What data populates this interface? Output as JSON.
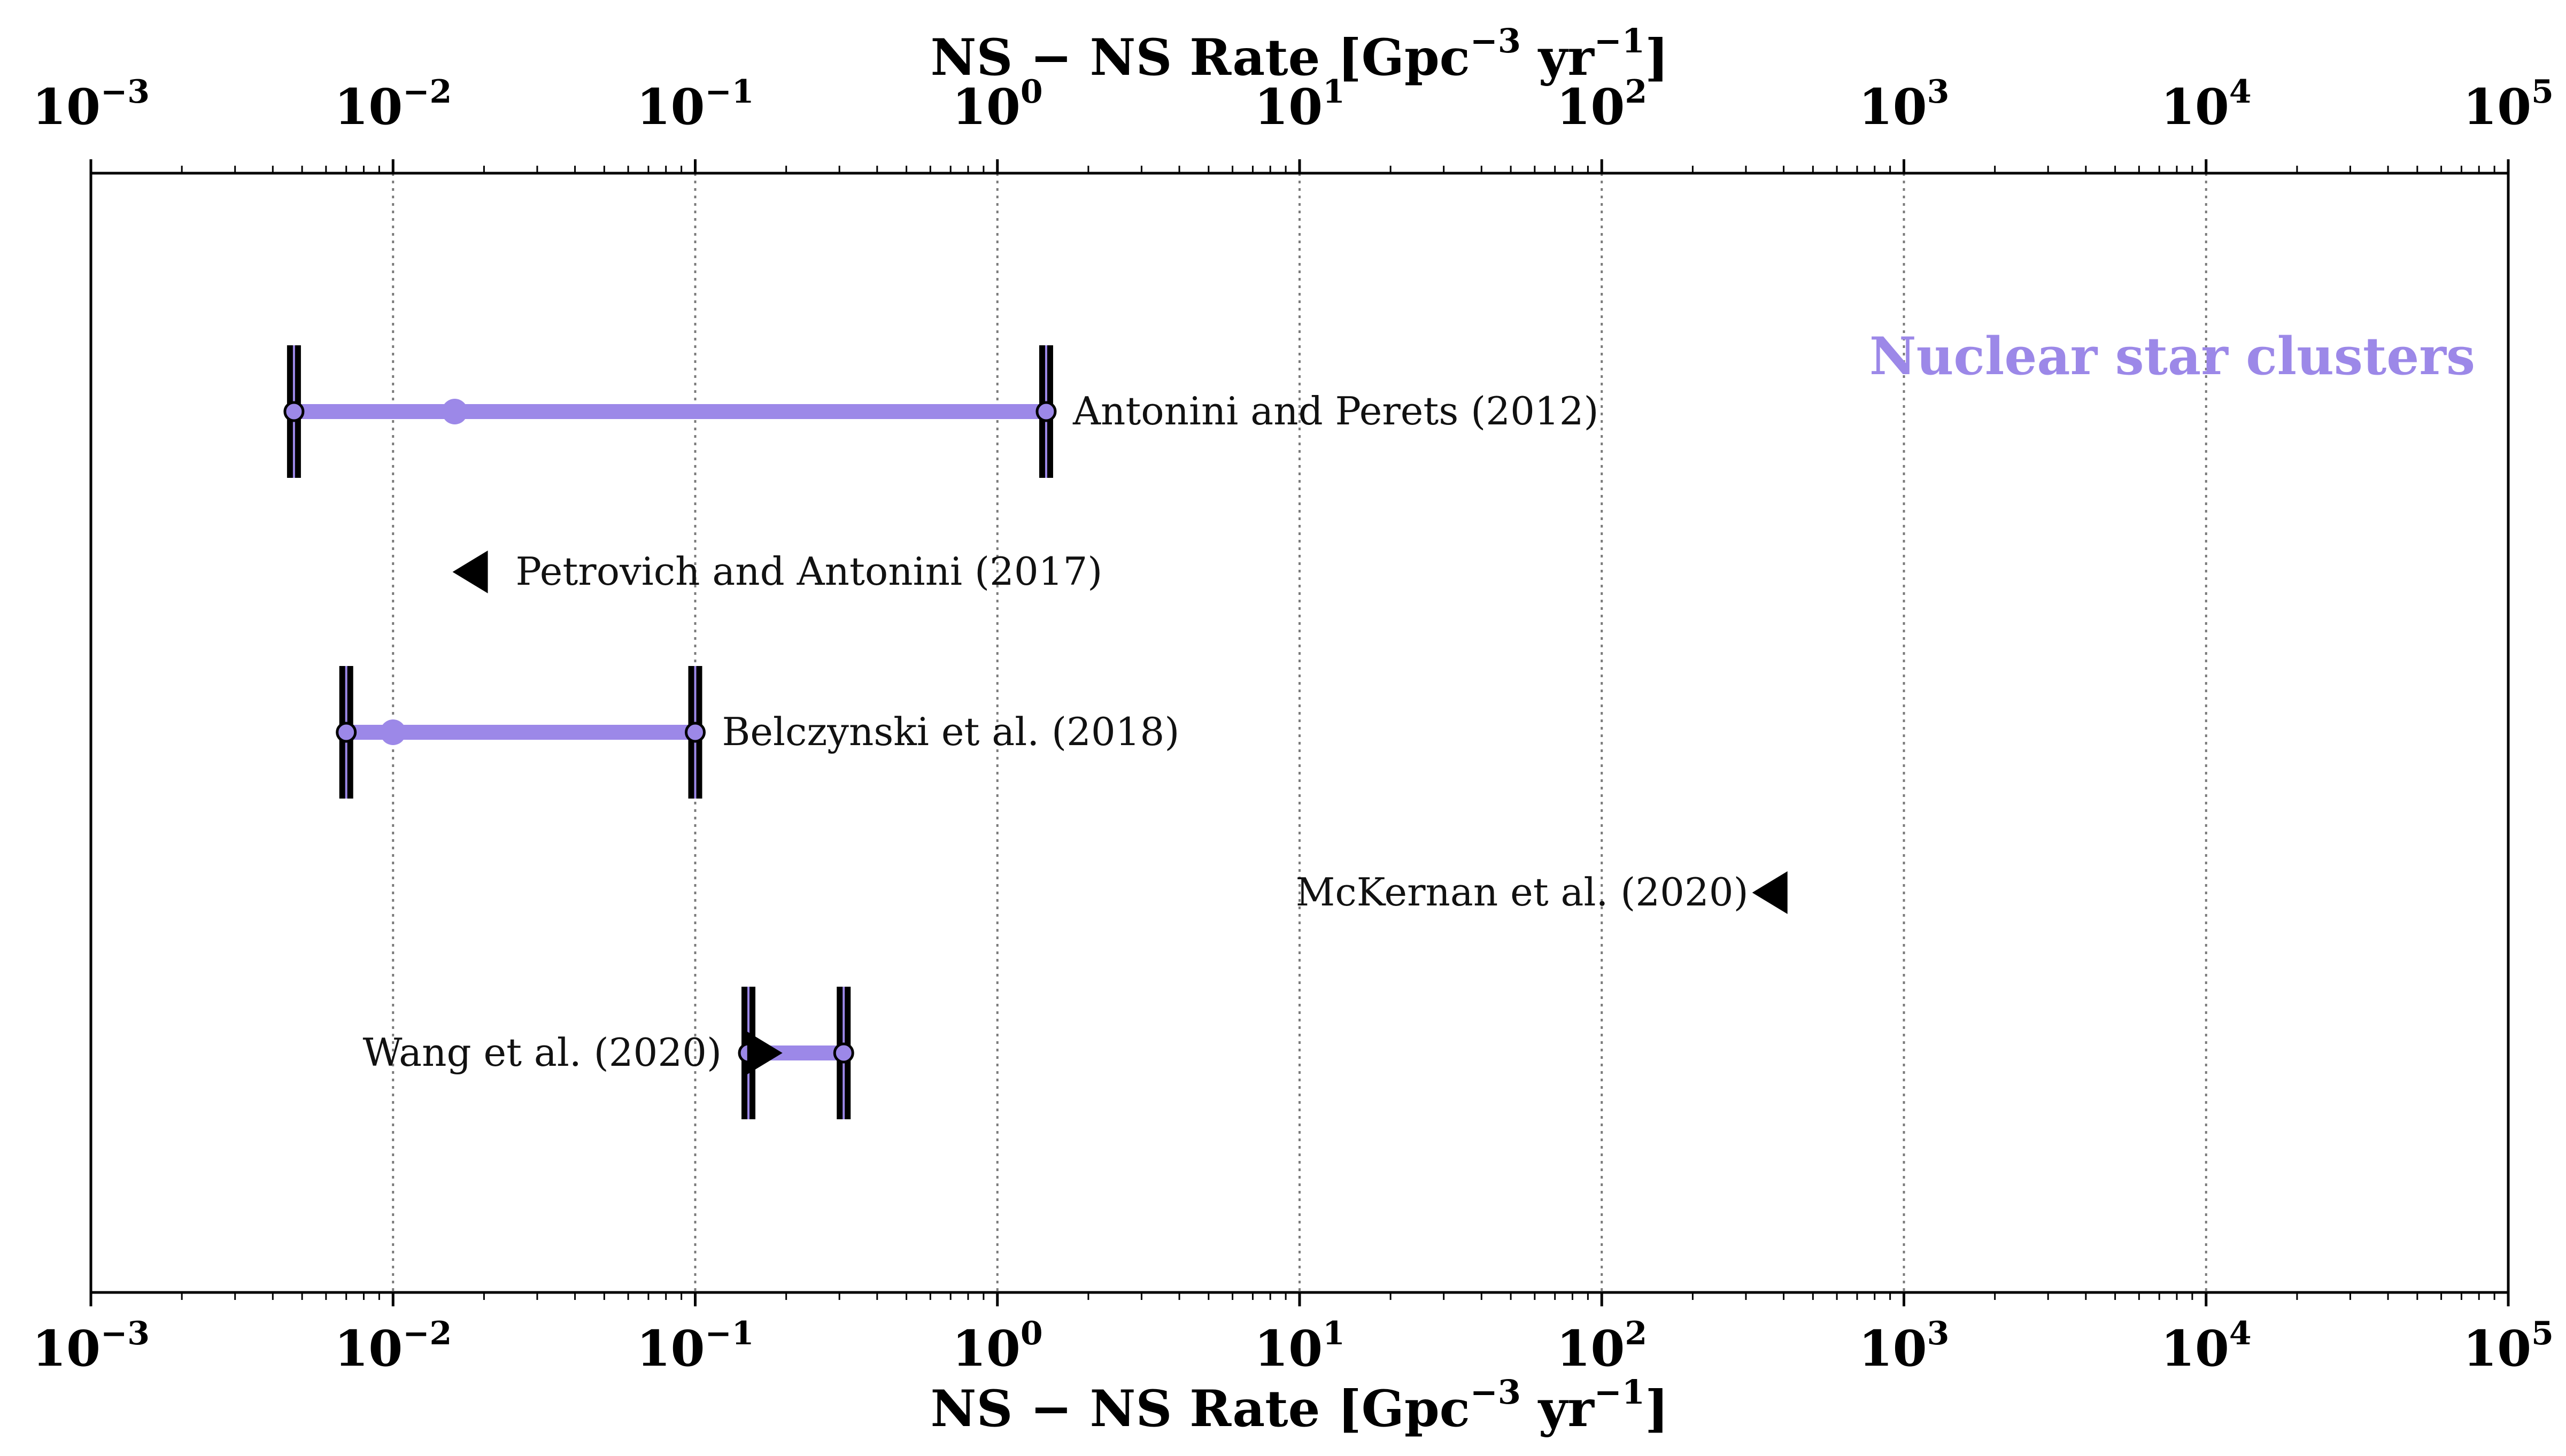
{
  "chart_data": {
    "type": "interval",
    "scale": "log",
    "xlim": [
      0.001,
      100000
    ],
    "xlabel": "NS − NS  Rate [Gpc⁻³ yr⁻¹]",
    "xlabel_parts": [
      "NS − NS  Rate [Gpc",
      "−3",
      " yr",
      "−1",
      "]"
    ],
    "top_xlabel": "NS − NS  Rate [Gpc⁻³ yr⁻¹]",
    "ticks": [
      {
        "value": 0.001,
        "base": "10",
        "exp": "−3"
      },
      {
        "value": 0.01,
        "base": "10",
        "exp": "−2"
      },
      {
        "value": 0.1,
        "base": "10",
        "exp": "−1"
      },
      {
        "value": 1,
        "base": "10",
        "exp": "0"
      },
      {
        "value": 10,
        "base": "10",
        "exp": "1"
      },
      {
        "value": 100,
        "base": "10",
        "exp": "2"
      },
      {
        "value": 1000,
        "base": "10",
        "exp": "3"
      },
      {
        "value": 10000,
        "base": "10",
        "exp": "4"
      },
      {
        "value": 100000,
        "base": "10",
        "exp": "5"
      }
    ],
    "grid": "vertical-dotted",
    "category_label": "Nuclear star clusters",
    "category_color": "#9c88e8",
    "series_color": "#9c88e8",
    "marker_color": "#000000",
    "entries": [
      {
        "label": "Antonini and Perets (2012)",
        "low": 0.0047,
        "high": 1.45,
        "point": 0.016,
        "arrow": null,
        "label_side": "right"
      },
      {
        "label": "Petrovich and Antonini (2017)",
        "low": null,
        "high": null,
        "point": 0.018,
        "arrow": "left",
        "label_side": "right"
      },
      {
        "label": "Belczynski et al. (2018)",
        "low": 0.007,
        "high": 0.1,
        "point": 0.01,
        "arrow": null,
        "label_side": "right"
      },
      {
        "label": "McKernan et al. (2020)",
        "low": null,
        "high": null,
        "point": 360,
        "arrow": "left",
        "label_side": "left"
      },
      {
        "label": "Wang et al. (2020)",
        "low": 0.15,
        "high": 0.31,
        "point": 0.17,
        "arrow": "right",
        "label_side": "left"
      }
    ]
  }
}
